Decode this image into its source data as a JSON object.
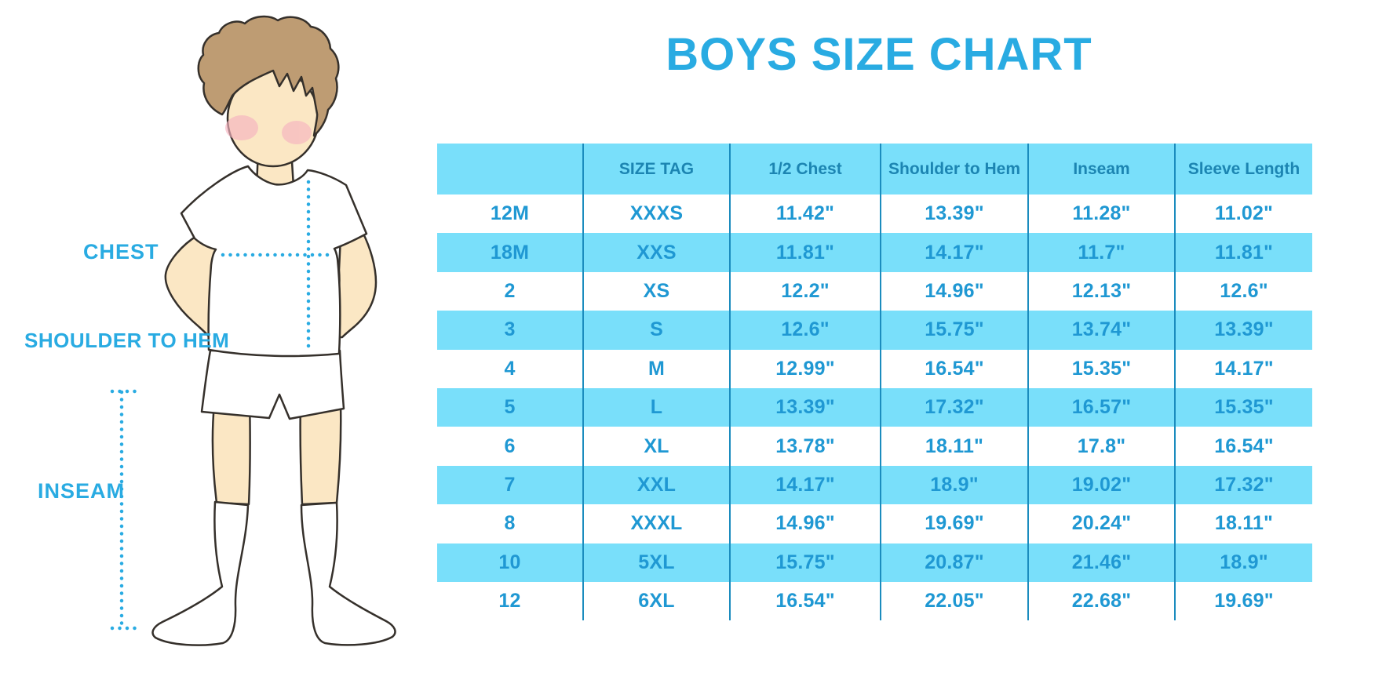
{
  "title": "BOYS SIZE CHART",
  "figure": {
    "chest_label": "CHEST",
    "shoulder_label": "SHOULDER TO HEM",
    "inseam_label": "INSEAM"
  },
  "colors": {
    "accent": "#29ABE2",
    "table_fill": "#79DFFA",
    "grid_line": "#1B8CBE",
    "header_text": "#1C85B2",
    "cell_text": "#1F98D3",
    "skin": "#FBE7C4",
    "hair": "#BE9C73",
    "blush": "#F6B3C0",
    "outline": "#35302B",
    "clothes": "#FFFFFF"
  },
  "chart_data": {
    "type": "table",
    "title": "BOYS SIZE CHART",
    "units": "inches",
    "columns": [
      "",
      "SIZE TAG",
      "1/2 Chest",
      "Shoulder to Hem",
      "Inseam",
      "Sleeve Length"
    ],
    "rows": [
      [
        "12M",
        "XXXS",
        "11.42\"",
        "13.39\"",
        "11.28\"",
        "11.02\""
      ],
      [
        "18M",
        "XXS",
        "11.81\"",
        "14.17\"",
        "11.7\"",
        "11.81\""
      ],
      [
        "2",
        "XS",
        "12.2\"",
        "14.96\"",
        "12.13\"",
        "12.6\""
      ],
      [
        "3",
        "S",
        "12.6\"",
        "15.75\"",
        "13.74\"",
        "13.39\""
      ],
      [
        "4",
        "M",
        "12.99\"",
        "16.54\"",
        "15.35\"",
        "14.17\""
      ],
      [
        "5",
        "L",
        "13.39\"",
        "17.32\"",
        "16.57\"",
        "15.35\""
      ],
      [
        "6",
        "XL",
        "13.78\"",
        "18.11\"",
        "17.8\"",
        "16.54\""
      ],
      [
        "7",
        "XXL",
        "14.17\"",
        "18.9\"",
        "19.02\"",
        "17.32\""
      ],
      [
        "8",
        "XXXL",
        "14.96\"",
        "19.69\"",
        "20.24\"",
        "18.11\""
      ],
      [
        "10",
        "5XL",
        "15.75\"",
        "20.87\"",
        "21.46\"",
        "18.9\""
      ],
      [
        "12",
        "6XL",
        "16.54\"",
        "22.05\"",
        "22.68\"",
        "19.69\""
      ]
    ],
    "layout": {
      "zebra_striping": "rows alternate white / light blue starting white",
      "column_dividers": true,
      "outer_border": false
    }
  }
}
